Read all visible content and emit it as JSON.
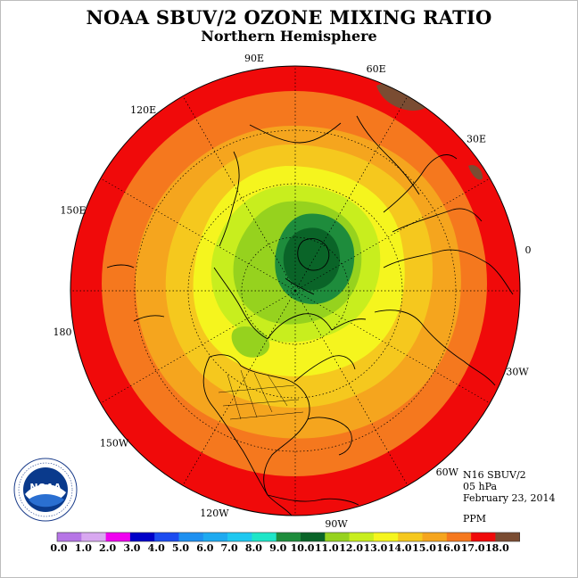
{
  "title": "NOAA SBUV/2 OZONE MIXING RATIO",
  "subtitle": "Northern Hemisphere",
  "info": {
    "instrument": "N16 SBUV/2",
    "level": "05 hPa",
    "date": "February 23, 2014",
    "units": "PPM"
  },
  "longitude_labels": [
    {
      "text": "90E",
      "angle": 90
    },
    {
      "text": "60E",
      "angle": 60
    },
    {
      "text": "30E",
      "angle": 30
    },
    {
      "text": "0",
      "angle": 0
    },
    {
      "text": "30W",
      "angle": -30
    },
    {
      "text": "60W",
      "angle": -60
    },
    {
      "text": "90W",
      "angle": -90
    },
    {
      "text": "120W",
      "angle": -120
    },
    {
      "text": "150W",
      "angle": -150
    },
    {
      "text": "180",
      "angle": 180
    },
    {
      "text": "150E",
      "angle": 150
    },
    {
      "text": "120E",
      "angle": 120
    }
  ],
  "colorbar": {
    "colors": [
      "#b675e6",
      "#d8a8f0",
      "#f000f0",
      "#0000c8",
      "#1c4cf0",
      "#1e90f0",
      "#1eaaf0",
      "#1ec8f0",
      "#1ee6c8",
      "#1e8c3c",
      "#0a6428",
      "#96d21e",
      "#c8ee1e",
      "#f5f51e",
      "#f5c81e",
      "#f5a51e",
      "#f5781e",
      "#f00a0a",
      "#7a4c32"
    ],
    "labels": [
      "0.0",
      "1.0",
      "2.0",
      "3.0",
      "4.0",
      "5.0",
      "6.0",
      "7.0",
      "8.0",
      "9.0",
      "10.0",
      "11.0",
      "12.0",
      "13.0",
      "14.0",
      "15.0",
      "16.0",
      "17.0",
      "18.0"
    ]
  },
  "logo": {
    "text": "NOAA"
  },
  "map_colors": {
    "c16": "#f00a0a",
    "c15": "#f5781e",
    "c14": "#f5a51e",
    "c13": "#f5c81e",
    "c12": "#f5f51e",
    "c11": "#c8ee1e",
    "c10": "#96d21e",
    "c9": "#1e8c3c",
    "c8": "#0a6428",
    "c18": "#7a4c32"
  }
}
